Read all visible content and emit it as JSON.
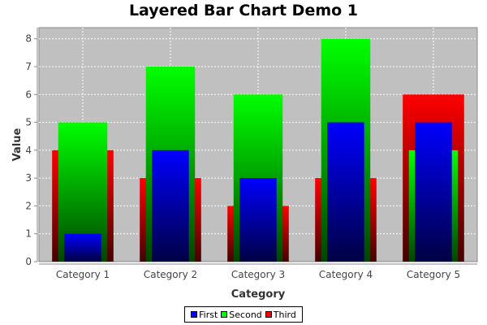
{
  "chart_data": {
    "type": "bar",
    "layered": true,
    "title": "Layered Bar Chart Demo 1",
    "xlabel": "Category",
    "ylabel": "Value",
    "categories": [
      "Category 1",
      "Category 2",
      "Category 3",
      "Category 4",
      "Category 5"
    ],
    "ylim": [
      0,
      8.4
    ],
    "yticks": [
      0,
      1,
      2,
      3,
      4,
      5,
      6,
      7,
      8
    ],
    "grid": true,
    "legend_position": "bottom",
    "plot_background": "#c0c0c0",
    "series": [
      {
        "name": "First",
        "values": [
          1,
          4,
          3,
          5,
          5
        ],
        "color": "#0000ff",
        "dark_color": "#000044"
      },
      {
        "name": "Second",
        "values": [
          5,
          7,
          6,
          8,
          4
        ],
        "color": "#00ff00",
        "dark_color": "#004400"
      },
      {
        "name": "Third",
        "values": [
          4,
          3,
          2,
          3,
          6
        ],
        "color": "#ff0000",
        "dark_color": "#440000"
      }
    ]
  }
}
